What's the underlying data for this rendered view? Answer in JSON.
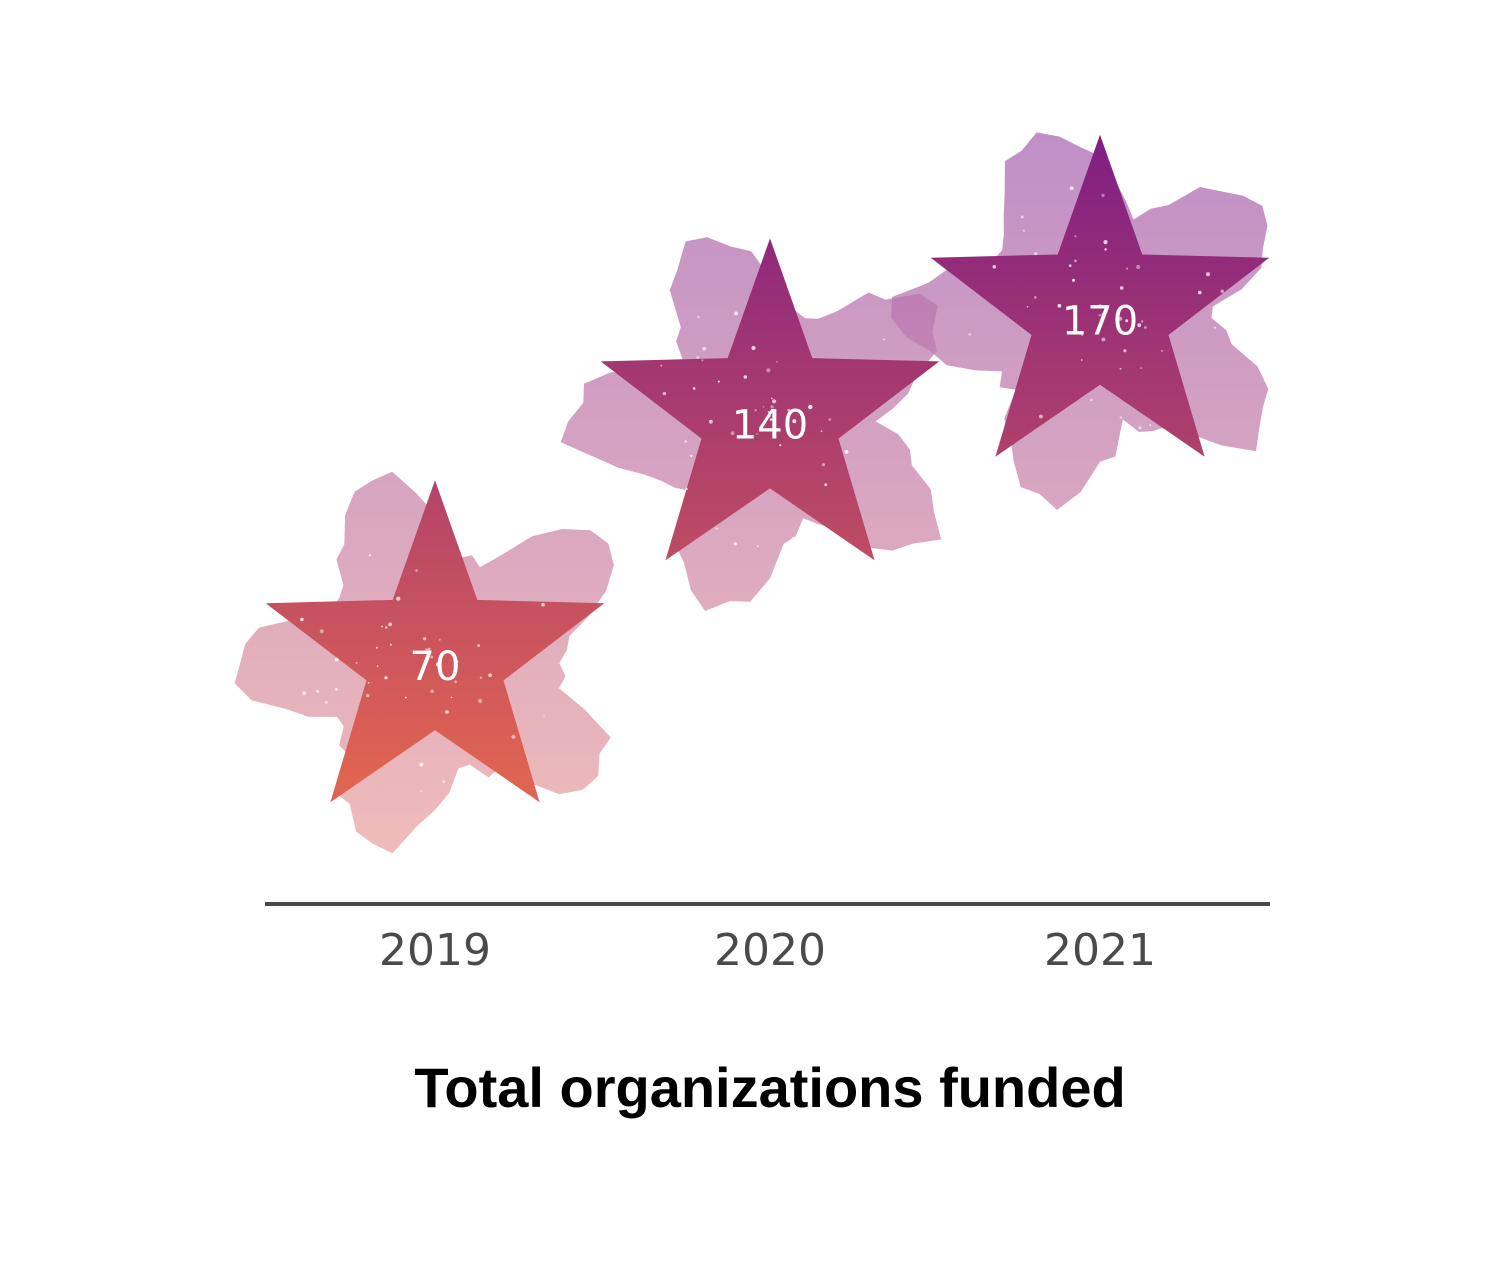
{
  "chart_data": {
    "type": "scatter",
    "title": "Total organizations funded",
    "xlabel": "",
    "ylabel": "",
    "categories": [
      "2019",
      "2020",
      "2021"
    ],
    "values": [
      70,
      140,
      170
    ],
    "value_labels": [
      "70",
      "140",
      "170"
    ],
    "ylim": [
      0,
      220
    ],
    "marker": "star",
    "grid": false,
    "colors": {
      "star_top": "#7a1a86",
      "star_bottom": "#e06452",
      "cloud_top": "#a766b4",
      "cloud_bottom": "#e8a3a3",
      "axis": "#4a4a4a",
      "tick_text": "#4a4a4a",
      "title_text": "#000000",
      "value_text": "#ffffff"
    }
  }
}
